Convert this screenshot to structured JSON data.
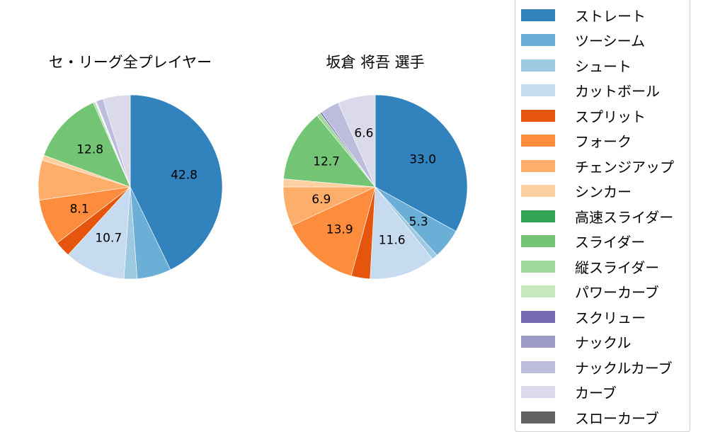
{
  "chart_data": [
    {
      "type": "pie",
      "title": "セ・リーグ全プレイヤー",
      "start_angle": 90,
      "direction": "clockwise",
      "categories": [
        "ストレート",
        "ツーシーム",
        "シュート",
        "カットボール",
        "スプリット",
        "フォーク",
        "チェンジアップ",
        "シンカー",
        "高速スライダー",
        "スライダー",
        "縦スライダー",
        "パワーカーブ",
        "スクリュー",
        "ナックル",
        "ナックルカーブ",
        "カーブ",
        "スローカーブ"
      ],
      "values": [
        42.8,
        6.0,
        2.3,
        10.7,
        2.8,
        8.1,
        7.0,
        0.9,
        0.0,
        12.8,
        0.3,
        0.1,
        0.1,
        0.1,
        1.2,
        4.8,
        0.0
      ],
      "data_labels": [
        "42.8",
        "",
        "",
        "10.7",
        "",
        "8.1",
        "",
        "",
        "",
        "12.8",
        "",
        "",
        "",
        "",
        "",
        "",
        ""
      ]
    },
    {
      "type": "pie",
      "title": "坂倉 将吾  選手",
      "start_angle": 90,
      "direction": "clockwise",
      "categories": [
        "ストレート",
        "ツーシーム",
        "シュート",
        "カットボール",
        "スプリット",
        "フォーク",
        "チェンジアップ",
        "シンカー",
        "高速スライダー",
        "スライダー",
        "縦スライダー",
        "パワーカーブ",
        "スクリュー",
        "ナックル",
        "ナックルカーブ",
        "カーブ",
        "スローカーブ"
      ],
      "values": [
        33.0,
        5.3,
        1.0,
        11.6,
        3.3,
        13.9,
        6.9,
        1.4,
        0.0,
        12.7,
        0.7,
        0.0,
        0.3,
        0.0,
        3.3,
        6.6,
        0.0
      ],
      "data_labels": [
        "33.0",
        "5.3",
        "",
        "11.6",
        "",
        "13.9",
        "6.9",
        "",
        "",
        "12.7",
        "",
        "",
        "",
        "",
        "",
        "6.6",
        ""
      ]
    }
  ],
  "titles": {
    "left": "セ・リーグ全プレイヤー",
    "right": "坂倉 将吾  選手"
  },
  "legend": {
    "items": [
      {
        "label": "ストレート",
        "color": "#3182bd"
      },
      {
        "label": "ツーシーム",
        "color": "#6baed6"
      },
      {
        "label": "シュート",
        "color": "#9ecae1"
      },
      {
        "label": "カットボール",
        "color": "#c6dbef"
      },
      {
        "label": "スプリット",
        "color": "#e6550d"
      },
      {
        "label": "フォーク",
        "color": "#fd8d3c"
      },
      {
        "label": "チェンジアップ",
        "color": "#fdae6b"
      },
      {
        "label": "シンカー",
        "color": "#fdd0a2"
      },
      {
        "label": "高速スライダー",
        "color": "#31a354"
      },
      {
        "label": "スライダー",
        "color": "#74c476"
      },
      {
        "label": "縦スライダー",
        "color": "#a1d99b"
      },
      {
        "label": "パワーカーブ",
        "color": "#c7e9c0"
      },
      {
        "label": "スクリュー",
        "color": "#756bb1"
      },
      {
        "label": "ナックル",
        "color": "#9e9ac8"
      },
      {
        "label": "ナックルカーブ",
        "color": "#bcbddc"
      },
      {
        "label": "カーブ",
        "color": "#dadaeb"
      },
      {
        "label": "スローカーブ",
        "color": "#636363"
      }
    ]
  }
}
